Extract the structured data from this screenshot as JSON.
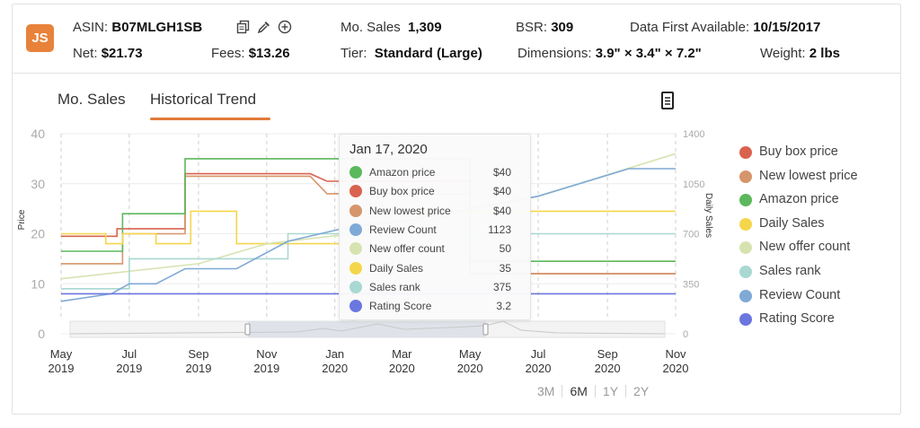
{
  "header": {
    "logo_text": "JS",
    "asin_label": "ASIN:",
    "asin_value": "B07MLGH1SB",
    "mo_sales_label": "Mo. Sales",
    "mo_sales_value": "1,309",
    "bsr_label": "BSR:",
    "bsr_value": "309",
    "first_available_label": "Data First Available:",
    "first_available_value": "10/15/2017",
    "net_label": "Net:",
    "net_value": "$21.73",
    "fees_label": "Fees:",
    "fees_value": "$13.26",
    "tier_label": "Tier:",
    "tier_value": "Standard (Large)",
    "dimensions_label": "Dimensions:",
    "dimensions_value": "3.9\" × 3.4\" × 7.2\"",
    "weight_label": "Weight:",
    "weight_value": "2 lbs",
    "icons": [
      "copy-icon",
      "eyedropper-icon",
      "add-circle-icon"
    ]
  },
  "tabs": [
    {
      "label": "Mo. Sales",
      "active": false
    },
    {
      "label": "Historical Trend",
      "active": true
    }
  ],
  "tooltip": {
    "date": "Jan 17, 2020",
    "rows": [
      {
        "label": "Amazon price",
        "value": "$40",
        "color": "#5cb85c"
      },
      {
        "label": "Buy box price",
        "value": "$40",
        "color": "#d9634f"
      },
      {
        "label": "New lowest price",
        "value": "$40",
        "color": "#d6956a"
      },
      {
        "label": "Review Count",
        "value": "1123",
        "color": "#7fa9d6"
      },
      {
        "label": "New offer count",
        "value": "50",
        "color": "#d6e3b0"
      },
      {
        "label": "Daily Sales",
        "value": "35",
        "color": "#f5d64b"
      },
      {
        "label": "Sales rank",
        "value": "375",
        "color": "#a9d8d2"
      },
      {
        "label": "Rating Score",
        "value": "3.2",
        "color": "#6b77e0"
      }
    ]
  },
  "legend": [
    {
      "label": "Buy box price",
      "color": "#d9634f"
    },
    {
      "label": "New lowest price",
      "color": "#d6956a"
    },
    {
      "label": "Amazon price",
      "color": "#5cb85c"
    },
    {
      "label": "Daily Sales",
      "color": "#f5d64b"
    },
    {
      "label": "New offer count",
      "color": "#d6e3b0"
    },
    {
      "label": "Sales rank",
      "color": "#a9d8d2"
    },
    {
      "label": "Review Count",
      "color": "#7fa9d6"
    },
    {
      "label": "Rating Score",
      "color": "#6b77e0"
    }
  ],
  "ranges": [
    {
      "label": "3M",
      "active": false
    },
    {
      "label": "6M",
      "active": true
    },
    {
      "label": "1Y",
      "active": false
    },
    {
      "label": "2Y",
      "active": false
    }
  ],
  "chart_data": {
    "type": "line",
    "ylabel": "Price",
    "y2label": "Daily Sales",
    "ylim": [
      0,
      40
    ],
    "y2lim": [
      0,
      1400
    ],
    "y_ticks": [
      0,
      10,
      20,
      30,
      40
    ],
    "y2_ticks": [
      0,
      350,
      700,
      1050,
      1400
    ],
    "x_ticks": [
      {
        "month": "May",
        "year": "2019"
      },
      {
        "month": "Jul",
        "year": "2019"
      },
      {
        "month": "Sep",
        "year": "2019"
      },
      {
        "month": "Nov",
        "year": "2019"
      },
      {
        "month": "Jan",
        "year": "2020"
      },
      {
        "month": "Mar",
        "year": "2020"
      },
      {
        "month": "May",
        "year": "2020"
      },
      {
        "month": "Jul",
        "year": "2020"
      },
      {
        "month": "Sep",
        "year": "2020"
      },
      {
        "month": "Nov",
        "year": "2020"
      }
    ],
    "x_range": [
      "2019-05-01",
      "2020-11-01"
    ],
    "hover_date": "2020-01-17",
    "grid": true,
    "legend_position": "right",
    "series": [
      {
        "name": "Buy box price",
        "axis": "price",
        "step": true,
        "color": "#d9634f",
        "points": [
          [
            "2019-05-01",
            19.5
          ],
          [
            "2019-06-20",
            19.5
          ],
          [
            "2019-06-20",
            21
          ],
          [
            "2019-08-20",
            21
          ],
          [
            "2019-08-20",
            32
          ],
          [
            "2019-12-10",
            32
          ],
          [
            "2019-12-25",
            30.5
          ],
          [
            "2020-05-01",
            30.5
          ],
          [
            "2020-05-01",
            12
          ],
          [
            "2020-11-01",
            12
          ]
        ]
      },
      {
        "name": "New lowest price",
        "axis": "price",
        "step": true,
        "color": "#d6956a",
        "points": [
          [
            "2019-05-01",
            14
          ],
          [
            "2019-06-25",
            14
          ],
          [
            "2019-06-25",
            20
          ],
          [
            "2019-08-20",
            20
          ],
          [
            "2019-08-20",
            31.5
          ],
          [
            "2019-12-10",
            31.5
          ],
          [
            "2019-12-25",
            28
          ],
          [
            "2020-05-01",
            28
          ],
          [
            "2020-05-01",
            12
          ],
          [
            "2020-11-01",
            12
          ]
        ]
      },
      {
        "name": "Amazon price",
        "axis": "price",
        "step": true,
        "color": "#5cb85c",
        "points": [
          [
            "2019-05-01",
            16.5
          ],
          [
            "2019-06-25",
            16.5
          ],
          [
            "2019-06-25",
            24
          ],
          [
            "2019-08-20",
            24
          ],
          [
            "2019-08-20",
            35
          ],
          [
            "2020-05-01",
            35
          ],
          [
            "2020-05-01",
            14.5
          ],
          [
            "2020-11-01",
            14.5
          ]
        ]
      },
      {
        "name": "Daily Sales",
        "axis": "price",
        "step": true,
        "color": "#f5d64b",
        "points": [
          [
            "2019-05-01",
            20
          ],
          [
            "2019-06-10",
            20
          ],
          [
            "2019-06-10",
            18
          ],
          [
            "2019-06-25",
            18
          ],
          [
            "2019-06-25",
            20
          ],
          [
            "2019-07-25",
            20
          ],
          [
            "2019-07-25",
            18
          ],
          [
            "2019-08-25",
            18
          ],
          [
            "2019-08-25",
            24.5
          ],
          [
            "2019-10-05",
            24.5
          ],
          [
            "2019-10-05",
            18
          ],
          [
            "2020-01-17",
            18
          ],
          [
            "2020-01-17",
            24.5
          ],
          [
            "2020-11-01",
            24.5
          ]
        ]
      },
      {
        "name": "New offer count",
        "axis": "price",
        "step": false,
        "color": "#d6e3b0",
        "points": [
          [
            "2019-05-01",
            11
          ],
          [
            "2019-09-01",
            14
          ],
          [
            "2019-11-01",
            18
          ],
          [
            "2020-01-17",
            20
          ],
          [
            "2020-04-01",
            23
          ],
          [
            "2020-07-01",
            27.5
          ],
          [
            "2020-11-01",
            36
          ]
        ]
      },
      {
        "name": "Sales rank",
        "axis": "price",
        "step": true,
        "color": "#a9d8d2",
        "points": [
          [
            "2019-05-01",
            9
          ],
          [
            "2019-07-01",
            9
          ],
          [
            "2019-07-01",
            15
          ],
          [
            "2019-11-20",
            15
          ],
          [
            "2019-11-20",
            20
          ],
          [
            "2020-11-01",
            20
          ]
        ]
      },
      {
        "name": "Review Count",
        "axis": "price",
        "step": false,
        "color": "#7fa9d6",
        "points": [
          [
            "2019-05-01",
            6.5
          ],
          [
            "2019-06-15",
            8
          ],
          [
            "2019-07-01",
            10
          ],
          [
            "2019-07-25",
            10
          ],
          [
            "2019-08-20",
            13
          ],
          [
            "2019-10-05",
            13
          ],
          [
            "2019-11-20",
            18.5
          ],
          [
            "2020-01-17",
            21.5
          ],
          [
            "2020-03-01",
            22.5
          ],
          [
            "2020-07-01",
            27.5
          ],
          [
            "2020-09-20",
            33
          ],
          [
            "2020-11-01",
            33
          ]
        ]
      },
      {
        "name": "Rating Score",
        "axis": "price",
        "step": false,
        "color": "#6b77e0",
        "points": [
          [
            "2019-05-01",
            8
          ],
          [
            "2020-11-01",
            8
          ]
        ]
      }
    ]
  }
}
